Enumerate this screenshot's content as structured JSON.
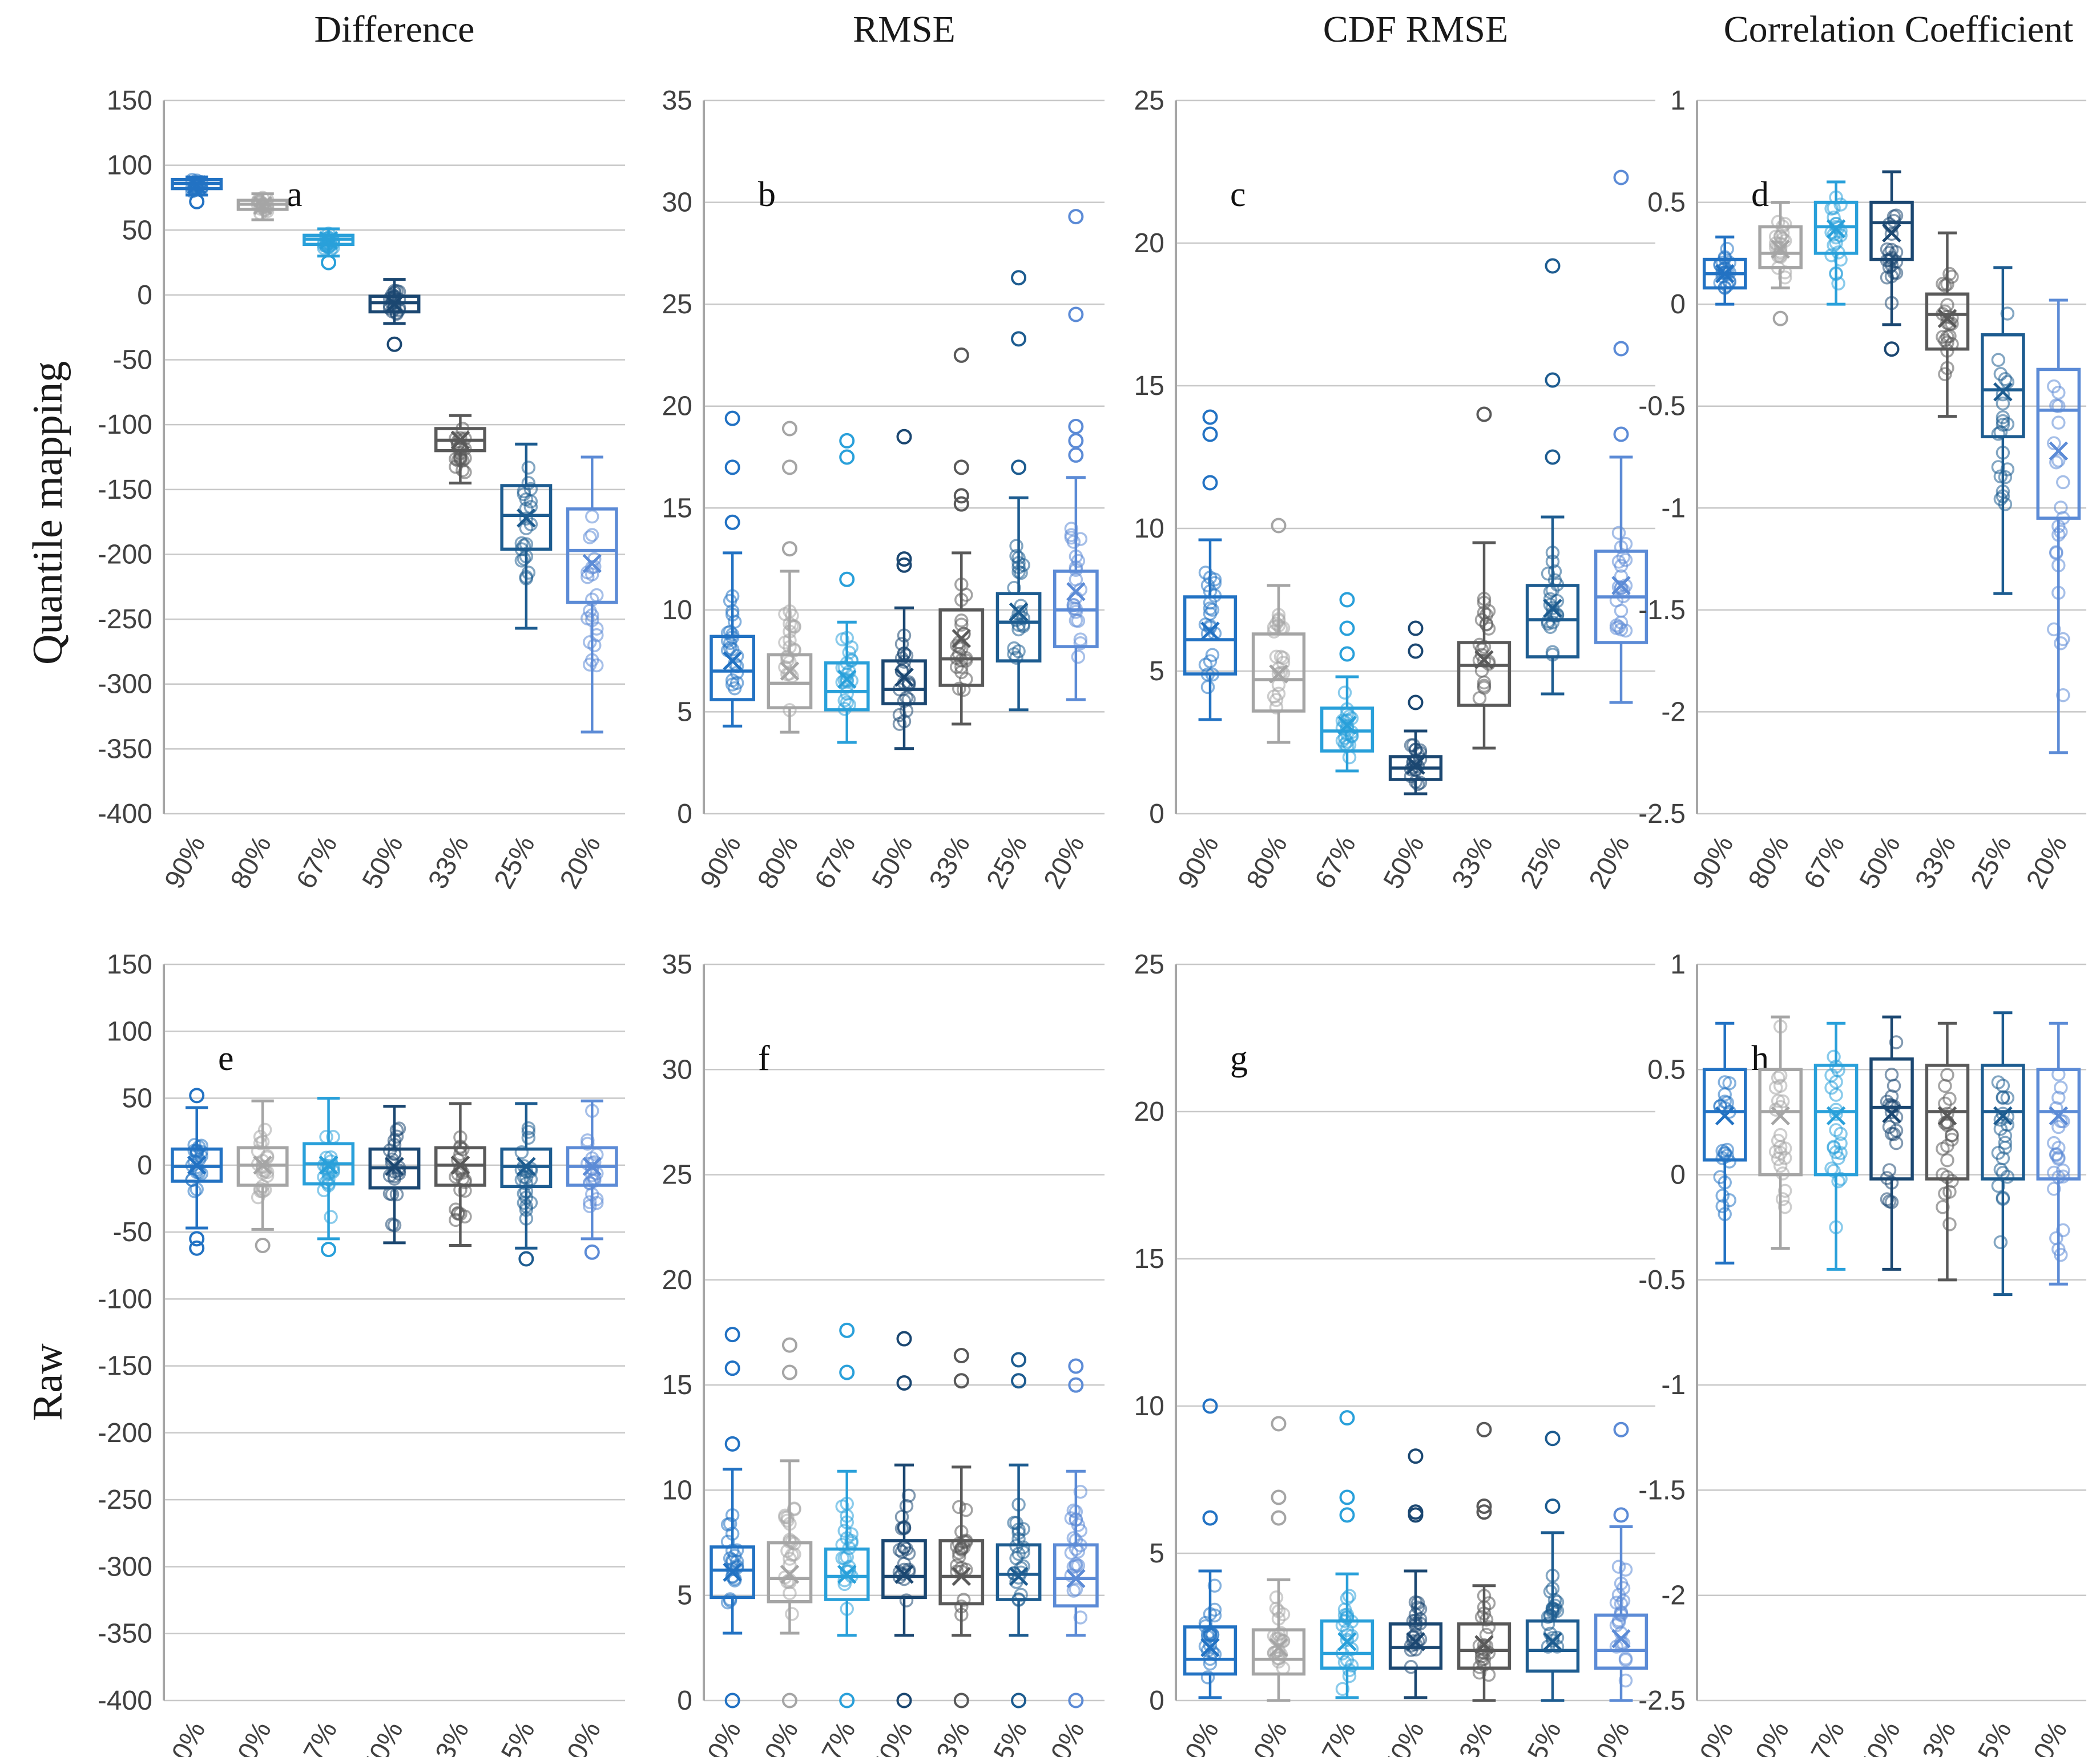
{
  "figure": {
    "row_labels": [
      "Quantile mapping",
      "Raw"
    ],
    "col_titles": [
      "Difference",
      "RMSE",
      "CDF RMSE",
      "Correlation Coefficient"
    ]
  },
  "colors": {
    "series": [
      "#2272C3",
      "#A5A5A5",
      "#29A0DA",
      "#1B4771",
      "#595959",
      "#1D5C90",
      "#5C8BD6"
    ],
    "series_names": [
      "90%",
      "80%",
      "67%",
      "50%",
      "33%",
      "25%",
      "20%"
    ],
    "gridline": "#C8C8C8",
    "axis": "#A6A6A6",
    "tick_text": "#404040",
    "letter_text": "#111111"
  },
  "chart_data": {
    "type": "box",
    "categories": [
      "90%",
      "80%",
      "67%",
      "50%",
      "33%",
      "25%",
      "20%"
    ],
    "box_format": [
      "whisker_low",
      "q1",
      "median",
      "q3",
      "whisker_high",
      "mean",
      "outliers"
    ],
    "panels": [
      {
        "label": "a",
        "row": "Quantile mapping",
        "column": "Difference",
        "ylim": [
          -400,
          150
        ],
        "ystep": 50,
        "boxes": [
          [
            77,
            82,
            86,
            89,
            91,
            85,
            [
              72
            ]
          ],
          [
            58,
            66,
            70,
            73,
            78,
            69,
            []
          ],
          [
            30,
            39,
            43,
            46,
            51,
            42,
            [
              25
            ]
          ],
          [
            -22,
            -13,
            -6,
            -1,
            12,
            -7,
            [
              -38
            ]
          ],
          [
            -145,
            -120,
            -112,
            -103,
            -93,
            -112,
            []
          ],
          [
            -257,
            -196,
            -170,
            -147,
            -115,
            -172,
            []
          ],
          [
            -337,
            -237,
            -197,
            -165,
            -125,
            -207,
            []
          ]
        ]
      },
      {
        "label": "b",
        "row": "Quantile mapping",
        "column": "RMSE",
        "ylim": [
          0,
          35
        ],
        "ystep": 5,
        "boxes": [
          [
            4.3,
            5.6,
            7.0,
            8.7,
            12.8,
            7.5,
            [
              14.3,
              17.0,
              19.4
            ]
          ],
          [
            4.0,
            5.2,
            6.4,
            7.8,
            11.9,
            7.0,
            [
              13.0,
              17.0,
              18.9
            ]
          ],
          [
            3.5,
            5.1,
            6.0,
            7.4,
            9.4,
            6.6,
            [
              11.5,
              17.5,
              18.3
            ]
          ],
          [
            3.2,
            5.4,
            6.1,
            7.5,
            10.1,
            6.7,
            [
              12.2,
              12.5,
              18.5
            ]
          ],
          [
            4.4,
            6.3,
            7.6,
            10.0,
            12.8,
            8.6,
            [
              15.2,
              15.6,
              17.0,
              22.5
            ]
          ],
          [
            5.1,
            7.5,
            9.4,
            10.8,
            15.5,
            9.9,
            [
              17.0,
              23.3,
              26.3
            ]
          ],
          [
            5.6,
            8.2,
            10.0,
            11.9,
            16.5,
            10.9,
            [
              17.6,
              18.3,
              19.0,
              24.5,
              29.3
            ]
          ]
        ]
      },
      {
        "label": "c",
        "row": "Quantile mapping",
        "column": "CDF RMSE",
        "ylim": [
          0,
          25
        ],
        "ystep": 5,
        "boxes": [
          [
            3.3,
            4.9,
            6.1,
            7.6,
            9.6,
            6.4,
            [
              11.6,
              13.3,
              13.9
            ]
          ],
          [
            2.5,
            3.6,
            4.7,
            6.3,
            8.0,
            4.9,
            [
              10.1
            ]
          ],
          [
            1.5,
            2.2,
            2.9,
            3.7,
            4.8,
            3.1,
            [
              5.6,
              6.5,
              7.5
            ]
          ],
          [
            0.7,
            1.2,
            1.6,
            2.0,
            2.9,
            1.7,
            [
              3.9,
              5.7,
              6.5
            ]
          ],
          [
            2.3,
            3.8,
            5.2,
            6.0,
            9.5,
            5.4,
            [
              14.0
            ]
          ],
          [
            4.2,
            5.5,
            6.8,
            8.0,
            10.4,
            7.2,
            [
              12.5,
              15.2,
              19.2
            ]
          ],
          [
            3.9,
            6.0,
            7.6,
            9.2,
            12.5,
            8.0,
            [
              13.3,
              16.3,
              22.3
            ]
          ]
        ]
      },
      {
        "label": "d",
        "row": "Quantile mapping",
        "column": "Correlation Coefficient",
        "ylim": [
          -2.5,
          1
        ],
        "ystep": 0.5,
        "boxes": [
          [
            0.0,
            0.08,
            0.15,
            0.22,
            0.33,
            0.15,
            []
          ],
          [
            0.08,
            0.18,
            0.25,
            0.38,
            0.5,
            0.27,
            [
              -0.07
            ]
          ],
          [
            0.0,
            0.25,
            0.38,
            0.5,
            0.6,
            0.37,
            []
          ],
          [
            -0.1,
            0.22,
            0.4,
            0.5,
            0.65,
            0.35,
            [
              -0.22
            ]
          ],
          [
            -0.55,
            -0.22,
            -0.05,
            0.05,
            0.35,
            -0.07,
            []
          ],
          [
            -1.42,
            -0.65,
            -0.42,
            -0.15,
            0.18,
            -0.43,
            []
          ],
          [
            -2.2,
            -1.05,
            -0.52,
            -0.32,
            0.02,
            -0.72,
            []
          ]
        ]
      },
      {
        "label": "e",
        "row": "Raw",
        "column": "Difference",
        "ylim": [
          -400,
          150
        ],
        "ystep": 50,
        "boxes": [
          [
            -47,
            -12,
            -1,
            12,
            43,
            0,
            [
              52,
              -55,
              -62
            ]
          ],
          [
            -48,
            -15,
            0,
            13,
            48,
            0,
            [
              -60
            ]
          ],
          [
            -55,
            -14,
            1,
            16,
            50,
            0,
            [
              -63
            ]
          ],
          [
            -58,
            -17,
            -2,
            12,
            44,
            -1,
            []
          ],
          [
            -60,
            -15,
            0,
            13,
            46,
            0,
            []
          ],
          [
            -62,
            -16,
            -1,
            12,
            46,
            -1,
            [
              -70
            ]
          ],
          [
            -55,
            -15,
            -1,
            13,
            48,
            -1,
            [
              -65
            ]
          ]
        ]
      },
      {
        "label": "f",
        "row": "Raw",
        "column": "RMSE",
        "ylim": [
          0,
          35
        ],
        "ystep": 5,
        "boxes": [
          [
            3.2,
            4.9,
            6.2,
            7.3,
            11.0,
            6.1,
            [
              0,
              12.2,
              15.8,
              17.4
            ]
          ],
          [
            3.2,
            4.7,
            5.8,
            7.5,
            11.4,
            6.0,
            [
              0,
              15.6,
              16.9
            ]
          ],
          [
            3.1,
            4.8,
            5.9,
            7.2,
            10.9,
            6.0,
            [
              0,
              15.6,
              17.6
            ]
          ],
          [
            3.1,
            4.9,
            5.9,
            7.6,
            11.2,
            6.0,
            [
              0,
              15.1,
              17.2
            ]
          ],
          [
            3.1,
            4.6,
            5.9,
            7.6,
            11.1,
            5.9,
            [
              0,
              15.2,
              16.4
            ]
          ],
          [
            3.1,
            4.8,
            6.0,
            7.4,
            11.2,
            5.9,
            [
              0,
              15.2,
              16.2
            ]
          ],
          [
            3.1,
            4.5,
            5.8,
            7.4,
            10.9,
            5.8,
            [
              0,
              15.0,
              15.9
            ]
          ]
        ]
      },
      {
        "label": "g",
        "row": "Raw",
        "column": "CDF RMSE",
        "ylim": [
          0,
          25
        ],
        "ystep": 5,
        "boxes": [
          [
            0.1,
            0.9,
            1.4,
            2.5,
            4.4,
            1.8,
            [
              6.2,
              10.0
            ]
          ],
          [
            0.0,
            0.9,
            1.4,
            2.4,
            4.1,
            1.8,
            [
              6.2,
              6.9,
              9.4
            ]
          ],
          [
            0.1,
            1.1,
            1.6,
            2.7,
            4.3,
            2.0,
            [
              6.3,
              6.9,
              9.6
            ]
          ],
          [
            0.1,
            1.1,
            1.8,
            2.6,
            4.4,
            2.0,
            [
              6.3,
              6.4,
              8.3
            ]
          ],
          [
            0.0,
            1.1,
            1.7,
            2.6,
            3.9,
            1.9,
            [
              6.4,
              6.6,
              9.2
            ]
          ],
          [
            0.0,
            1.0,
            1.7,
            2.7,
            5.7,
            2.0,
            [
              6.6,
              8.9
            ]
          ],
          [
            0.0,
            1.1,
            1.7,
            2.9,
            5.9,
            2.1,
            [
              6.3,
              9.2
            ]
          ]
        ]
      },
      {
        "label": "h",
        "row": "Raw",
        "column": "Correlation Coefficient",
        "ylim": [
          -2.5,
          1
        ],
        "ystep": 0.5,
        "boxes": [
          [
            -0.42,
            0.07,
            0.3,
            0.5,
            0.72,
            0.28,
            []
          ],
          [
            -0.35,
            0.0,
            0.3,
            0.5,
            0.75,
            0.28,
            []
          ],
          [
            -0.45,
            0.0,
            0.3,
            0.52,
            0.72,
            0.28,
            []
          ],
          [
            -0.45,
            -0.02,
            0.32,
            0.55,
            0.75,
            0.29,
            []
          ],
          [
            -0.5,
            -0.02,
            0.3,
            0.52,
            0.72,
            0.28,
            []
          ],
          [
            -0.57,
            -0.02,
            0.3,
            0.52,
            0.77,
            0.28,
            []
          ],
          [
            -0.52,
            -0.02,
            0.3,
            0.5,
            0.72,
            0.28,
            []
          ]
        ]
      }
    ]
  }
}
